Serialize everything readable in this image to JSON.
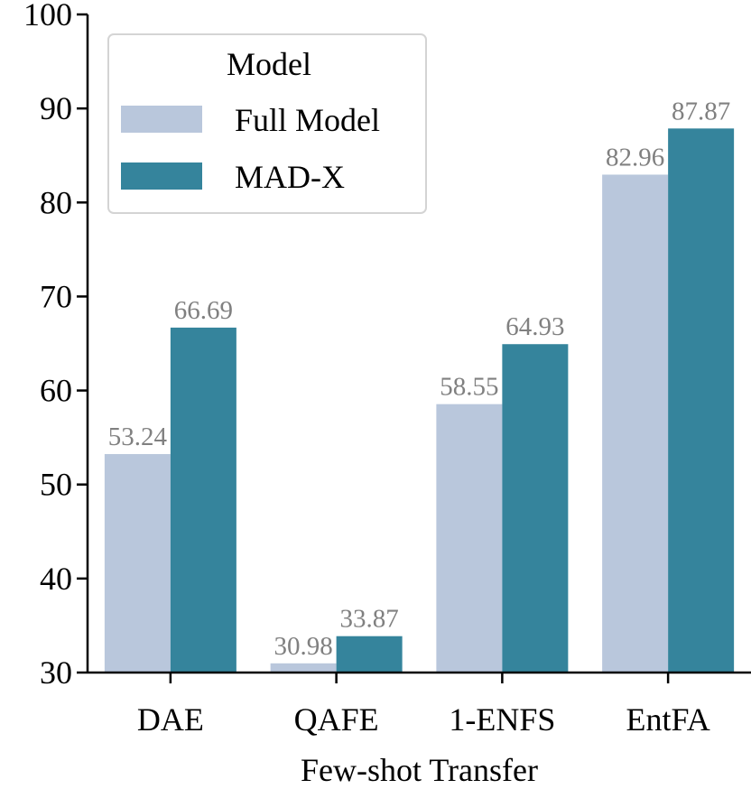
{
  "chart_data": {
    "type": "bar",
    "title": "",
    "xlabel": "Few-shot Transfer",
    "ylabel": "",
    "ylim": [
      30,
      100
    ],
    "yticks": [
      30,
      40,
      50,
      60,
      70,
      80,
      90,
      100
    ],
    "grid": false,
    "categories": [
      "DAE",
      "QAFE",
      "1-ENFS",
      "EntFA"
    ],
    "series": [
      {
        "name": "Full Model",
        "color": "#b9c7dc",
        "values": [
          53.24,
          30.98,
          58.55,
          82.96
        ],
        "labels": [
          "53.24",
          "30.98",
          "58.55",
          "82.96"
        ]
      },
      {
        "name": "MAD-X",
        "color": "#35849c",
        "values": [
          66.69,
          33.87,
          64.93,
          87.87
        ],
        "labels": [
          "66.69",
          "33.87",
          "64.93",
          "87.87"
        ]
      }
    ],
    "legend": {
      "title": "Model",
      "position": "top-left"
    }
  }
}
